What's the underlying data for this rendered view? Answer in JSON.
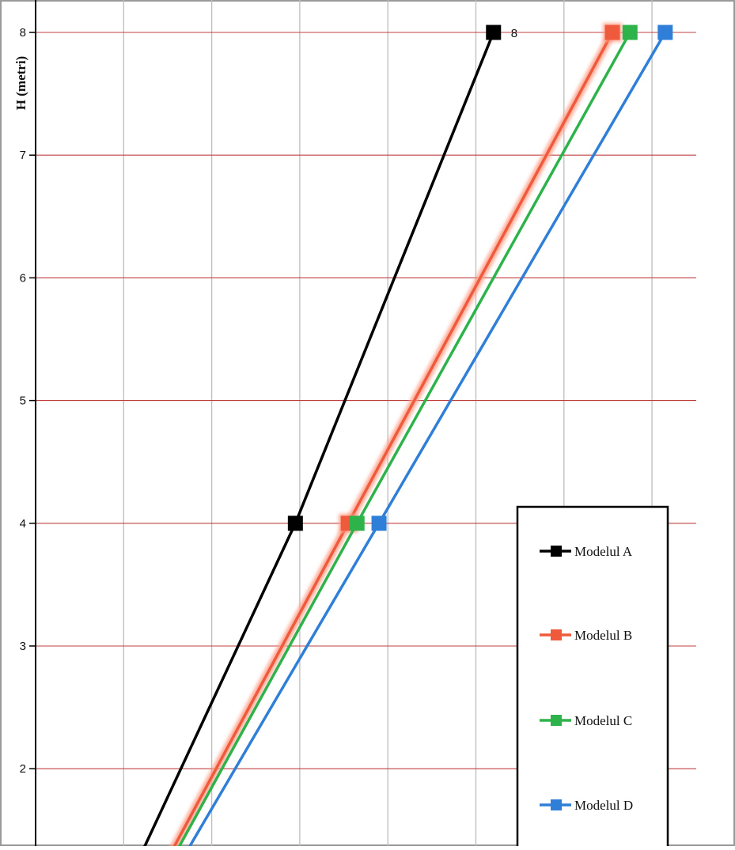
{
  "chart_data": {
    "type": "line",
    "ylabel": "H (metri)",
    "y_ticks": [
      "2",
      "3",
      "4",
      "5",
      "6",
      "7",
      "8"
    ],
    "ylim": [
      1.35,
      8.15
    ],
    "xlim": [
      0,
      7.5
    ],
    "grid": true,
    "legend_placement": "bottom-right",
    "series": [
      {
        "name": "Modelul A",
        "color": "#000000",
        "x": [
          1.0,
          2.95,
          5.2
        ],
        "y": [
          1,
          4,
          8
        ],
        "point_labels": [
          "",
          "",
          "8"
        ]
      },
      {
        "name": "Modelul B",
        "color": "#f05a3c",
        "x": [
          1.3,
          3.55,
          6.55
        ],
        "y": [
          1,
          4,
          8
        ]
      },
      {
        "name": "Modelul C",
        "color": "#2db34a",
        "x": [
          1.35,
          3.65,
          6.75
        ],
        "y": [
          1,
          4,
          8
        ]
      },
      {
        "name": "Modelul D",
        "color": "#2f7fd8",
        "x": [
          1.45,
          3.9,
          7.15
        ],
        "y": [
          1,
          4,
          8
        ]
      }
    ]
  }
}
